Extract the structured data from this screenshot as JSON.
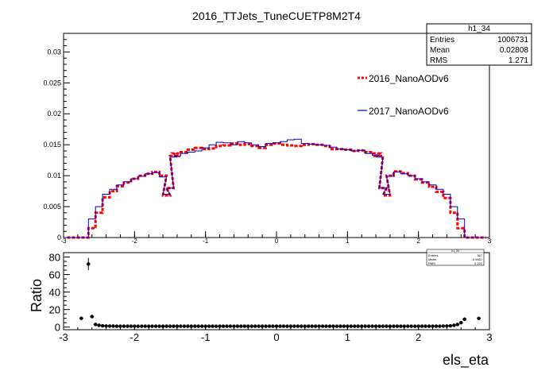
{
  "title": "2016_TTJets_TuneCUETP8M2T4",
  "stats_box": {
    "name": "h1_34",
    "rows": [
      {
        "label": "Entries",
        "value": "1006731"
      },
      {
        "label": "Mean",
        "value": "0.02808"
      },
      {
        "label": "RMS",
        "value": "1.271"
      }
    ]
  },
  "ratio_stats_box": {
    "name": "h1_34",
    "rows": [
      {
        "label": "Entries",
        "value": "367"
      },
      {
        "label": "Mean",
        "value": "-0.9467"
      },
      {
        "label": "RMS",
        "value": "2.222"
      }
    ]
  },
  "colors": {
    "series_2016": "#ff0000",
    "series_2017": "#0000cc",
    "ratio_points": "#000000"
  },
  "chart_data": [
    {
      "type": "line",
      "title": "2016_TTJets_TuneCUETP8M2T4",
      "xlabel": "",
      "ylabel": "",
      "xlim": [
        -3,
        3
      ],
      "ylim": [
        0,
        0.033
      ],
      "yticks": [
        "0",
        "0.005",
        "0.01",
        "0.015",
        "0.02",
        "0.025",
        "0.03"
      ],
      "xticks": [
        "-3",
        "-2",
        "-1",
        "0",
        "1",
        "2",
        "3"
      ],
      "legend": "right",
      "series": [
        {
          "name": "2016_NanoAODv6",
          "style": "dashed",
          "x": [
            -2.6,
            -2.5,
            -2.4,
            -2.3,
            -2.2,
            -2.1,
            -2.0,
            -1.9,
            -1.8,
            -1.7,
            -1.6,
            -1.55,
            -1.5,
            -1.45,
            -1.4,
            -1.3,
            -1.2,
            -1.1,
            -1.0,
            -0.9,
            -0.8,
            -0.7,
            -0.6,
            -0.5,
            -0.4,
            -0.3,
            -0.2,
            -0.1,
            0.0,
            0.1,
            0.2,
            0.3,
            0.4,
            0.5,
            0.6,
            0.7,
            0.8,
            0.9,
            1.0,
            1.1,
            1.2,
            1.3,
            1.4,
            1.45,
            1.5,
            1.55,
            1.6,
            1.7,
            1.8,
            1.9,
            2.0,
            2.1,
            2.2,
            2.3,
            2.4,
            2.5,
            2.6
          ],
          "values": [
            0.0015,
            0.004,
            0.0065,
            0.0075,
            0.0083,
            0.0089,
            0.0095,
            0.01,
            0.0103,
            0.0106,
            0.01,
            0.0068,
            0.008,
            0.0132,
            0.0136,
            0.0138,
            0.0142,
            0.0145,
            0.0143,
            0.0144,
            0.0148,
            0.0149,
            0.0152,
            0.015,
            0.0151,
            0.0148,
            0.0145,
            0.015,
            0.0152,
            0.015,
            0.0149,
            0.0148,
            0.015,
            0.0151,
            0.015,
            0.0148,
            0.0143,
            0.0143,
            0.0142,
            0.014,
            0.0141,
            0.0138,
            0.0136,
            0.0132,
            0.008,
            0.0068,
            0.01,
            0.0107,
            0.0104,
            0.01,
            0.0094,
            0.0089,
            0.0082,
            0.0074,
            0.0064,
            0.004,
            0.0015
          ]
        },
        {
          "name": "2017_NanoAODv6",
          "style": "step",
          "x": [
            -2.6,
            -2.5,
            -2.4,
            -2.3,
            -2.2,
            -2.1,
            -2.0,
            -1.9,
            -1.8,
            -1.7,
            -1.6,
            -1.55,
            -1.5,
            -1.45,
            -1.4,
            -1.3,
            -1.2,
            -1.1,
            -1.0,
            -0.9,
            -0.8,
            -0.7,
            -0.6,
            -0.5,
            -0.4,
            -0.3,
            -0.2,
            -0.1,
            0.0,
            0.1,
            0.2,
            0.3,
            0.4,
            0.5,
            0.6,
            0.7,
            0.8,
            0.9,
            1.0,
            1.1,
            1.2,
            1.3,
            1.4,
            1.45,
            1.5,
            1.55,
            1.6,
            1.7,
            1.8,
            1.9,
            2.0,
            2.1,
            2.2,
            2.3,
            2.4,
            2.5,
            2.6
          ],
          "values": [
            0.003,
            0.005,
            0.007,
            0.0078,
            0.0085,
            0.009,
            0.0095,
            0.0099,
            0.0103,
            0.0105,
            0.0098,
            0.007,
            0.008,
            0.013,
            0.0132,
            0.0136,
            0.0138,
            0.014,
            0.0145,
            0.015,
            0.0154,
            0.0153,
            0.015,
            0.0155,
            0.0153,
            0.015,
            0.0147,
            0.0152,
            0.0153,
            0.0155,
            0.0158,
            0.0159,
            0.0152,
            0.0151,
            0.015,
            0.0149,
            0.0146,
            0.0143,
            0.0142,
            0.014,
            0.0141,
            0.0136,
            0.0133,
            0.013,
            0.008,
            0.007,
            0.0099,
            0.0106,
            0.0103,
            0.01,
            0.0095,
            0.009,
            0.0085,
            0.0078,
            0.007,
            0.005,
            0.003
          ]
        }
      ]
    },
    {
      "type": "scatter",
      "title": "",
      "xlabel": "els_eta",
      "ylabel": "Ratio",
      "xlim": [
        -3,
        3
      ],
      "ylim": [
        -3,
        85
      ],
      "yticks": [
        "0",
        "20",
        "40",
        "60",
        "80"
      ],
      "xticks": [
        "-3",
        "-2",
        "-1",
        "0",
        "1",
        "2",
        "3"
      ],
      "series": [
        {
          "name": "",
          "x": [
            -2.75,
            -2.65,
            -2.6,
            -2.55,
            -2.5,
            -2.45,
            -2.4,
            -2.35,
            -2.3,
            -2.25,
            -2.2,
            -2.15,
            -2.1,
            -2.05,
            -2.0,
            -1.95,
            -1.9,
            -1.85,
            -1.8,
            -1.75,
            -1.7,
            -1.65,
            -1.6,
            -1.55,
            -1.5,
            -1.45,
            -1.4,
            -1.35,
            -1.3,
            -1.25,
            -1.2,
            -1.15,
            -1.1,
            -1.05,
            -1.0,
            -0.95,
            -0.9,
            -0.85,
            -0.8,
            -0.75,
            -0.7,
            -0.65,
            -0.6,
            -0.55,
            -0.5,
            -0.45,
            -0.4,
            -0.35,
            -0.3,
            -0.25,
            -0.2,
            -0.15,
            -0.1,
            -0.05,
            0.0,
            0.05,
            0.1,
            0.15,
            0.2,
            0.25,
            0.3,
            0.35,
            0.4,
            0.45,
            0.5,
            0.55,
            0.6,
            0.65,
            0.7,
            0.75,
            0.8,
            0.85,
            0.9,
            0.95,
            1.0,
            1.05,
            1.1,
            1.15,
            1.2,
            1.25,
            1.3,
            1.35,
            1.4,
            1.45,
            1.5,
            1.55,
            1.6,
            1.65,
            1.7,
            1.75,
            1.8,
            1.85,
            1.9,
            1.95,
            2.0,
            2.05,
            2.1,
            2.15,
            2.2,
            2.25,
            2.3,
            2.35,
            2.4,
            2.45,
            2.5,
            2.55,
            2.6,
            2.65,
            2.7,
            2.85
          ],
          "values": [
            10,
            72,
            12,
            3,
            2,
            1.5,
            1.2,
            1.1,
            1.1,
            1.0,
            1.0,
            1.0,
            1.0,
            1.0,
            1.0,
            1.0,
            1.0,
            1.0,
            1.0,
            1.0,
            1.0,
            1.0,
            1.0,
            1.0,
            1.0,
            1.0,
            1.0,
            1.0,
            1.0,
            1.0,
            1.0,
            1.0,
            1.0,
            1.0,
            1.0,
            1.0,
            1.0,
            1.0,
            1.0,
            1.0,
            1.0,
            1.0,
            1.0,
            1.0,
            1.0,
            1.0,
            1.0,
            1.0,
            1.0,
            1.0,
            1.0,
            1.0,
            1.0,
            1.0,
            1.0,
            1.0,
            1.0,
            1.0,
            1.0,
            1.0,
            1.0,
            1.0,
            1.0,
            1.0,
            1.0,
            1.0,
            1.0,
            1.0,
            1.0,
            1.0,
            1.0,
            1.0,
            1.0,
            1.0,
            1.0,
            1.0,
            1.0,
            1.0,
            1.0,
            1.0,
            1.0,
            1.0,
            1.0,
            1.0,
            1.0,
            1.0,
            1.0,
            1.0,
            1.0,
            1.0,
            1.0,
            1.0,
            1.0,
            1.0,
            1.0,
            1.0,
            1.0,
            1.0,
            1.0,
            1.0,
            1.0,
            1.1,
            1.2,
            1.5,
            2,
            3,
            5,
            9,
            0,
            10
          ],
          "errors": [
            0,
            7,
            2,
            0.5,
            0,
            0,
            0,
            0,
            0,
            0,
            0,
            0,
            0,
            0,
            0,
            0,
            0,
            0,
            0,
            0,
            0,
            0,
            0,
            0,
            0,
            0,
            0,
            0,
            0,
            0,
            0,
            0,
            0,
            0,
            0,
            0,
            0,
            0,
            0,
            0,
            0,
            0,
            0,
            0,
            0,
            0,
            0,
            0,
            0,
            0,
            0,
            0,
            0,
            0,
            0,
            0,
            0,
            0,
            0,
            0,
            0,
            0,
            0,
            0,
            0,
            0,
            0,
            0,
            0,
            0,
            0,
            0,
            0,
            0,
            0,
            0,
            0,
            0,
            0,
            0,
            0,
            0,
            0,
            0,
            0,
            0,
            0,
            0,
            0,
            0,
            0,
            0,
            0,
            0,
            0,
            0,
            0,
            0,
            0,
            0,
            0,
            0,
            0,
            0,
            0,
            0,
            1,
            2,
            0,
            2
          ]
        }
      ]
    }
  ]
}
